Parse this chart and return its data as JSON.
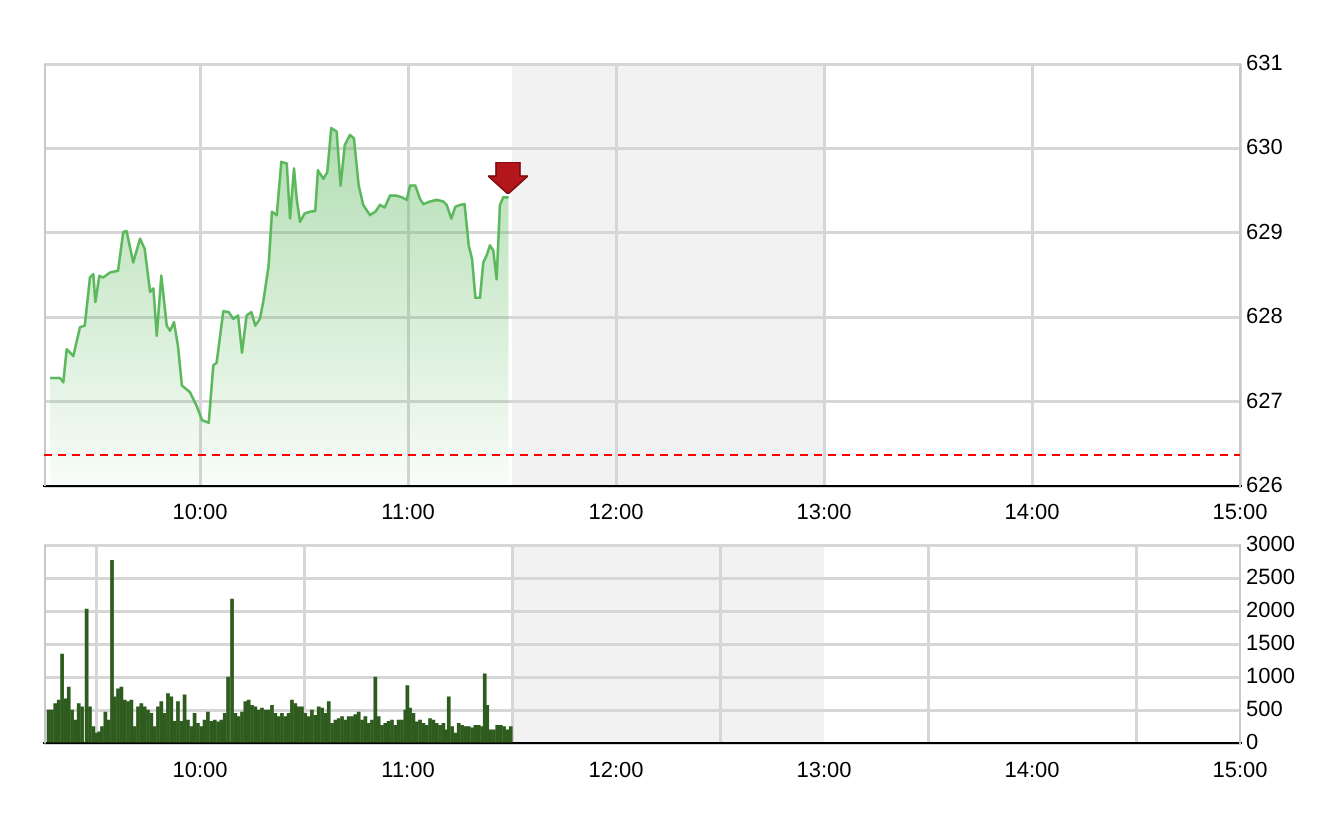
{
  "chart_data": [
    {
      "type": "area",
      "series": [
        {
          "color": "#5cb85c",
          "x": [
            9.279,
            9.327,
            9.343,
            9.359,
            9.391,
            9.423,
            9.446,
            9.471,
            9.487,
            9.497,
            9.516,
            9.535,
            9.567,
            9.606,
            9.631,
            9.647,
            9.679,
            9.712,
            9.734,
            9.76,
            9.776,
            9.792,
            9.814,
            9.84,
            9.856,
            9.875,
            9.894,
            9.913,
            9.952,
            9.984,
            10.01,
            10.042,
            10.064,
            10.08,
            10.112,
            10.138,
            10.16,
            10.183,
            10.202,
            10.224,
            10.247,
            10.266,
            10.288,
            10.304,
            10.33,
            10.346,
            10.369,
            10.391,
            10.417,
            10.433,
            10.452,
            10.465,
            10.481,
            10.503,
            10.529,
            10.554,
            10.567,
            10.593,
            10.612,
            10.631,
            10.657,
            10.676,
            10.696,
            10.721,
            10.74,
            10.763,
            10.785,
            10.817,
            10.843,
            10.865,
            10.888,
            10.913,
            10.946,
            10.971,
            10.994,
            11.01,
            11.035,
            11.058,
            11.074,
            11.106,
            11.138,
            11.17,
            11.186,
            11.208,
            11.228,
            11.25,
            11.272,
            11.292,
            11.308,
            11.324,
            11.346,
            11.362,
            11.378,
            11.394,
            11.41,
            11.426,
            11.442,
            11.458,
            11.484
          ],
          "values": [
            627.28,
            627.28,
            627.23,
            627.62,
            627.54,
            627.88,
            627.9,
            628.47,
            628.51,
            628.18,
            628.49,
            628.47,
            628.53,
            628.55,
            629.01,
            629.02,
            628.65,
            628.93,
            628.81,
            628.3,
            628.34,
            627.78,
            628.49,
            627.9,
            627.84,
            627.94,
            627.66,
            627.19,
            627.11,
            626.95,
            626.78,
            626.75,
            627.43,
            627.46,
            628.07,
            628.06,
            627.98,
            628.02,
            627.58,
            628.02,
            628.06,
            627.9,
            627.98,
            628.18,
            628.61,
            629.25,
            629.21,
            629.84,
            629.82,
            629.17,
            629.76,
            629.4,
            629.13,
            629.23,
            629.25,
            629.26,
            629.74,
            629.64,
            629.72,
            630.24,
            630.2,
            629.56,
            630.04,
            630.16,
            630.12,
            629.56,
            629.33,
            629.21,
            629.25,
            629.33,
            629.3,
            629.44,
            629.44,
            629.42,
            629.39,
            629.56,
            629.56,
            629.4,
            629.34,
            629.37,
            629.39,
            629.37,
            629.33,
            629.17,
            629.31,
            629.33,
            629.34,
            628.85,
            628.69,
            628.23,
            628.23,
            628.65,
            628.73,
            628.85,
            628.79,
            628.45,
            629.33,
            629.42,
            629.42
          ]
        }
      ],
      "xlim": [
        9.25,
        15
      ],
      "xticks": [
        {
          "value": 10,
          "label": "10:00"
        },
        {
          "value": 11,
          "label": "11:00"
        },
        {
          "value": 12,
          "label": "12:00"
        },
        {
          "value": 13,
          "label": "13:00"
        },
        {
          "value": 14,
          "label": "14:00"
        },
        {
          "value": 15,
          "label": "15:00"
        }
      ],
      "ylim": [
        626,
        631
      ],
      "yticks": [
        626,
        627,
        628,
        629,
        630,
        631
      ],
      "ref_lines": [
        {
          "axis": "y",
          "value": 626.38,
          "color": "#ff0000",
          "line_style": "dashed"
        }
      ],
      "bands": [
        {
          "axis": "x",
          "from": 11.5,
          "to": 13,
          "color": "#f2f2f2"
        }
      ],
      "grid": true
    },
    {
      "type": "bar",
      "series": [
        {
          "color": "#2e5c1e",
          "x": [
            9.272,
            9.288,
            9.304,
            9.321,
            9.337,
            9.353,
            9.369,
            9.385,
            9.401,
            9.417,
            9.433,
            9.455,
            9.471,
            9.487,
            9.503,
            9.516,
            9.529,
            9.545,
            9.561,
            9.577,
            9.59,
            9.606,
            9.622,
            9.638,
            9.654,
            9.67,
            9.686,
            9.702,
            9.718,
            9.734,
            9.75,
            9.766,
            9.782,
            9.798,
            9.814,
            9.83,
            9.846,
            9.862,
            9.878,
            9.894,
            9.91,
            9.926,
            9.942,
            9.958,
            9.974,
            9.99,
            10.006,
            10.022,
            10.038,
            10.054,
            10.071,
            10.087,
            10.103,
            10.119,
            10.135,
            10.154,
            10.17,
            10.186,
            10.202,
            10.218,
            10.234,
            10.25,
            10.266,
            10.282,
            10.298,
            10.314,
            10.33,
            10.346,
            10.362,
            10.378,
            10.394,
            10.41,
            10.426,
            10.442,
            10.458,
            10.474,
            10.49,
            10.506,
            10.522,
            10.538,
            10.554,
            10.571,
            10.587,
            10.603,
            10.619,
            10.635,
            10.651,
            10.667,
            10.683,
            10.699,
            10.715,
            10.731,
            10.747,
            10.763,
            10.779,
            10.795,
            10.811,
            10.827,
            10.843,
            10.859,
            10.875,
            10.891,
            10.907,
            10.923,
            10.939,
            10.955,
            10.971,
            10.987,
            10.997,
            11.01,
            11.026,
            11.042,
            11.058,
            11.074,
            11.09,
            11.106,
            11.122,
            11.138,
            11.154,
            11.17,
            11.186,
            11.196,
            11.212,
            11.228,
            11.244,
            11.26,
            11.276,
            11.292,
            11.308,
            11.324,
            11.34,
            11.356,
            11.369,
            11.381,
            11.397,
            11.413,
            11.429,
            11.446,
            11.462,
            11.478,
            11.494
          ],
          "values": [
            500,
            500,
            600,
            650,
            1350,
            670,
            850,
            500,
            350,
            600,
            550,
            2030,
            550,
            250,
            150,
            170,
            250,
            470,
            350,
            2770,
            700,
            820,
            850,
            650,
            630,
            650,
            250,
            550,
            600,
            550,
            500,
            450,
            250,
            550,
            630,
            450,
            750,
            700,
            330,
            630,
            330,
            730,
            350,
            250,
            450,
            300,
            250,
            350,
            470,
            330,
            350,
            320,
            350,
            450,
            1000,
            2180,
            450,
            400,
            470,
            630,
            650,
            570,
            550,
            500,
            530,
            500,
            500,
            570,
            450,
            400,
            450,
            400,
            450,
            650,
            600,
            550,
            550,
            450,
            400,
            500,
            420,
            550,
            530,
            450,
            630,
            300,
            350,
            370,
            400,
            350,
            400,
            400,
            430,
            470,
            350,
            400,
            300,
            350,
            1000,
            400,
            270,
            300,
            330,
            350,
            270,
            350,
            350,
            500,
            870,
            530,
            450,
            320,
            350,
            300,
            270,
            370,
            350,
            300,
            270,
            300,
            200,
            700,
            250,
            150,
            300,
            270,
            250,
            250,
            230,
            270,
            270,
            250,
            1050,
            570,
            200,
            200,
            270,
            270,
            250,
            200,
            250
          ]
        }
      ],
      "xlim": [
        9.25,
        15
      ],
      "xticks": [
        {
          "value": 10,
          "label": "10:00"
        },
        {
          "value": 11,
          "label": "11:00"
        },
        {
          "value": 12,
          "label": "12:00"
        },
        {
          "value": 13,
          "label": "13:00"
        },
        {
          "value": 14,
          "label": "14:00"
        },
        {
          "value": 15,
          "label": "15:00"
        }
      ],
      "ylim": [
        0,
        3000
      ],
      "yticks": [
        0,
        500,
        1000,
        1500,
        2000,
        2500,
        3000
      ],
      "bands": [
        {
          "axis": "x",
          "from": 11.5,
          "to": 13,
          "color": "#f2f2f2"
        }
      ],
      "grid": true
    }
  ]
}
